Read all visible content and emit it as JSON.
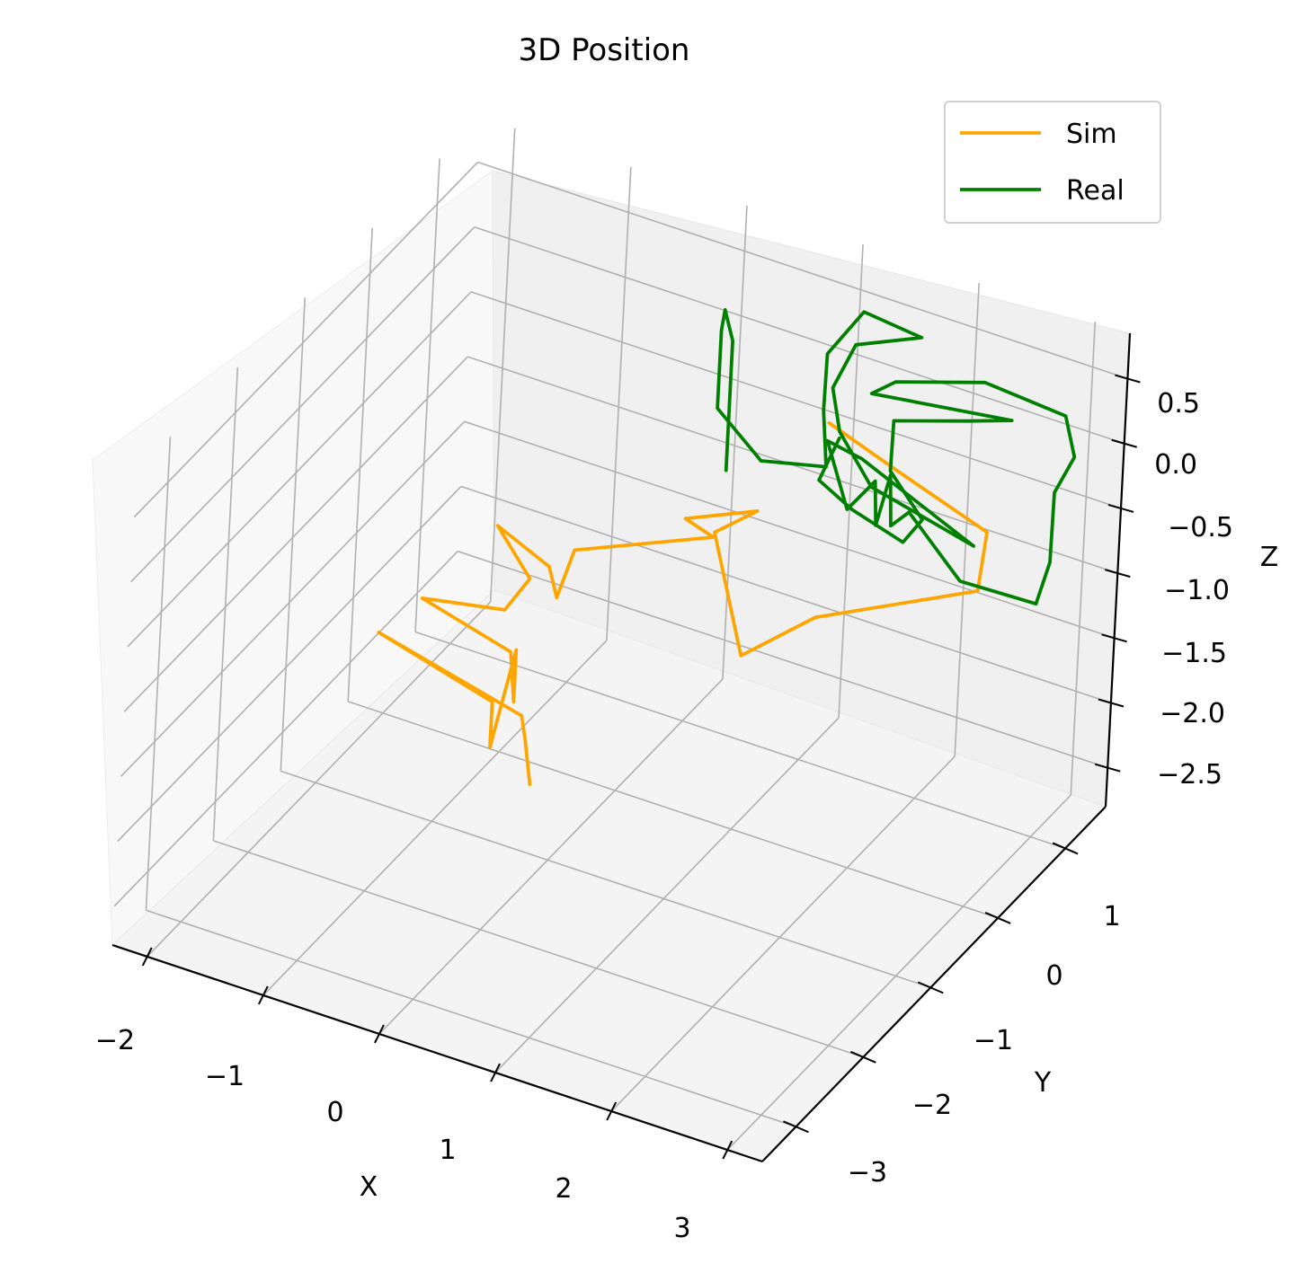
{
  "chart_data": {
    "type": "line",
    "projection": "3d",
    "title": "3D Position",
    "xlabel": "X",
    "ylabel": "Y",
    "zlabel": "Z",
    "xlim": [
      -2.3,
      3.3
    ],
    "ylim": [
      -3.5,
      1.6
    ],
    "zlim": [
      -2.8,
      0.85
    ],
    "xticks": [
      "−2",
      "−1",
      "0",
      "1",
      "2",
      "3"
    ],
    "yticks": [
      "−3",
      "−2",
      "−1",
      "0",
      "1"
    ],
    "zticks": [
      "−2.5",
      "−2.0",
      "−1.5",
      "−1.0",
      "−0.5",
      "0.0",
      "0.5"
    ],
    "grid": true,
    "legend_position": "top-right",
    "series": [
      {
        "name": "Sim",
        "color": "#ffa500",
        "points": [
          [
            -0.4,
            -0.6,
            -2.55
          ],
          [
            -0.45,
            -0.62,
            -2.2
          ],
          [
            -0.5,
            -0.6,
            -2.05
          ],
          [
            -1.8,
            -0.5,
            -1.85
          ],
          [
            -0.7,
            -0.7,
            -1.95
          ],
          [
            -0.7,
            -0.7,
            -2.3
          ],
          [
            -0.6,
            -0.55,
            -1.6
          ],
          [
            -0.6,
            -0.55,
            -2.0
          ],
          [
            -0.7,
            -0.45,
            -1.7
          ],
          [
            -1.5,
            -0.4,
            -1.55
          ],
          [
            -0.85,
            -0.3,
            -1.5
          ],
          [
            -0.65,
            -0.3,
            -1.2
          ],
          [
            -1.0,
            -0.2,
            -0.95
          ],
          [
            -0.6,
            -0.1,
            -1.2
          ],
          [
            -0.55,
            -0.05,
            -1.45
          ],
          [
            -0.5,
            0.1,
            -1.15
          ],
          [
            0.4,
            0.6,
            -1.05
          ],
          [
            0.1,
            0.7,
            -1.05
          ],
          [
            0.6,
            0.9,
            -0.95
          ],
          [
            0.3,
            0.8,
            -1.15
          ],
          [
            0.9,
            0.2,
            -1.6
          ],
          [
            1.3,
            0.6,
            -1.4
          ],
          [
            2.5,
            0.9,
            -1.0
          ],
          [
            2.5,
            1.0,
            -0.6
          ],
          [
            1.6,
            1.2,
            -0.5
          ],
          [
            0.9,
            1.4,
            -0.45
          ]
        ]
      },
      {
        "name": "Real",
        "color": "#008000",
        "points": [
          [
            0.1,
            1.3,
            -1.0
          ],
          [
            0.1,
            1.3,
            0.0
          ],
          [
            0.05,
            1.25,
            0.25
          ],
          [
            0.0,
            1.3,
            0.05
          ],
          [
            0.0,
            1.3,
            -0.55
          ],
          [
            0.5,
            1.1,
            -0.7
          ],
          [
            1.0,
            1.2,
            -0.65
          ],
          [
            0.9,
            1.3,
            -0.3
          ],
          [
            0.8,
            1.5,
            0.0
          ],
          [
            1.2,
            1.3,
            0.55
          ],
          [
            1.7,
            1.3,
            0.5
          ],
          [
            1.2,
            1.2,
            0.35
          ],
          [
            1.05,
            1.15,
            0.0
          ],
          [
            1.1,
            1.2,
            -0.35
          ],
          [
            1.5,
            1.0,
            -0.55
          ],
          [
            2.5,
            0.8,
            -0.6
          ],
          [
            1.3,
            1.2,
            -0.5
          ],
          [
            1.0,
            1.2,
            -0.45
          ],
          [
            1.25,
            1.1,
            -0.85
          ],
          [
            1.45,
            1.15,
            -0.6
          ],
          [
            1.5,
            1.1,
            -0.9
          ],
          [
            1.55,
            1.2,
            -0.55
          ],
          [
            1.6,
            1.15,
            -0.9
          ],
          [
            1.75,
            1.15,
            -0.75
          ],
          [
            2.4,
            0.8,
            -0.9
          ],
          [
            3.0,
            0.9,
            -0.95
          ],
          [
            3.1,
            0.9,
            -0.6
          ],
          [
            3.0,
            1.1,
            -0.2
          ],
          [
            3.1,
            1.2,
            0.05
          ],
          [
            2.9,
            1.4,
            0.2
          ],
          [
            2.2,
            1.4,
            0.25
          ],
          [
            1.5,
            1.3,
            0.1
          ],
          [
            1.3,
            1.3,
            -0.05
          ],
          [
            2.5,
            1.3,
            0.1
          ],
          [
            2.1,
            1.35,
            -0.05
          ],
          [
            1.5,
            1.3,
            -0.2
          ],
          [
            1.6,
            1.1,
            -0.45
          ],
          [
            2.0,
            0.9,
            -0.6
          ],
          [
            1.9,
            0.8,
            -0.75
          ],
          [
            1.4,
            0.9,
            -0.7
          ],
          [
            1.0,
            1.1,
            -0.7
          ],
          [
            1.1,
            1.2,
            -0.4
          ]
        ]
      }
    ]
  }
}
